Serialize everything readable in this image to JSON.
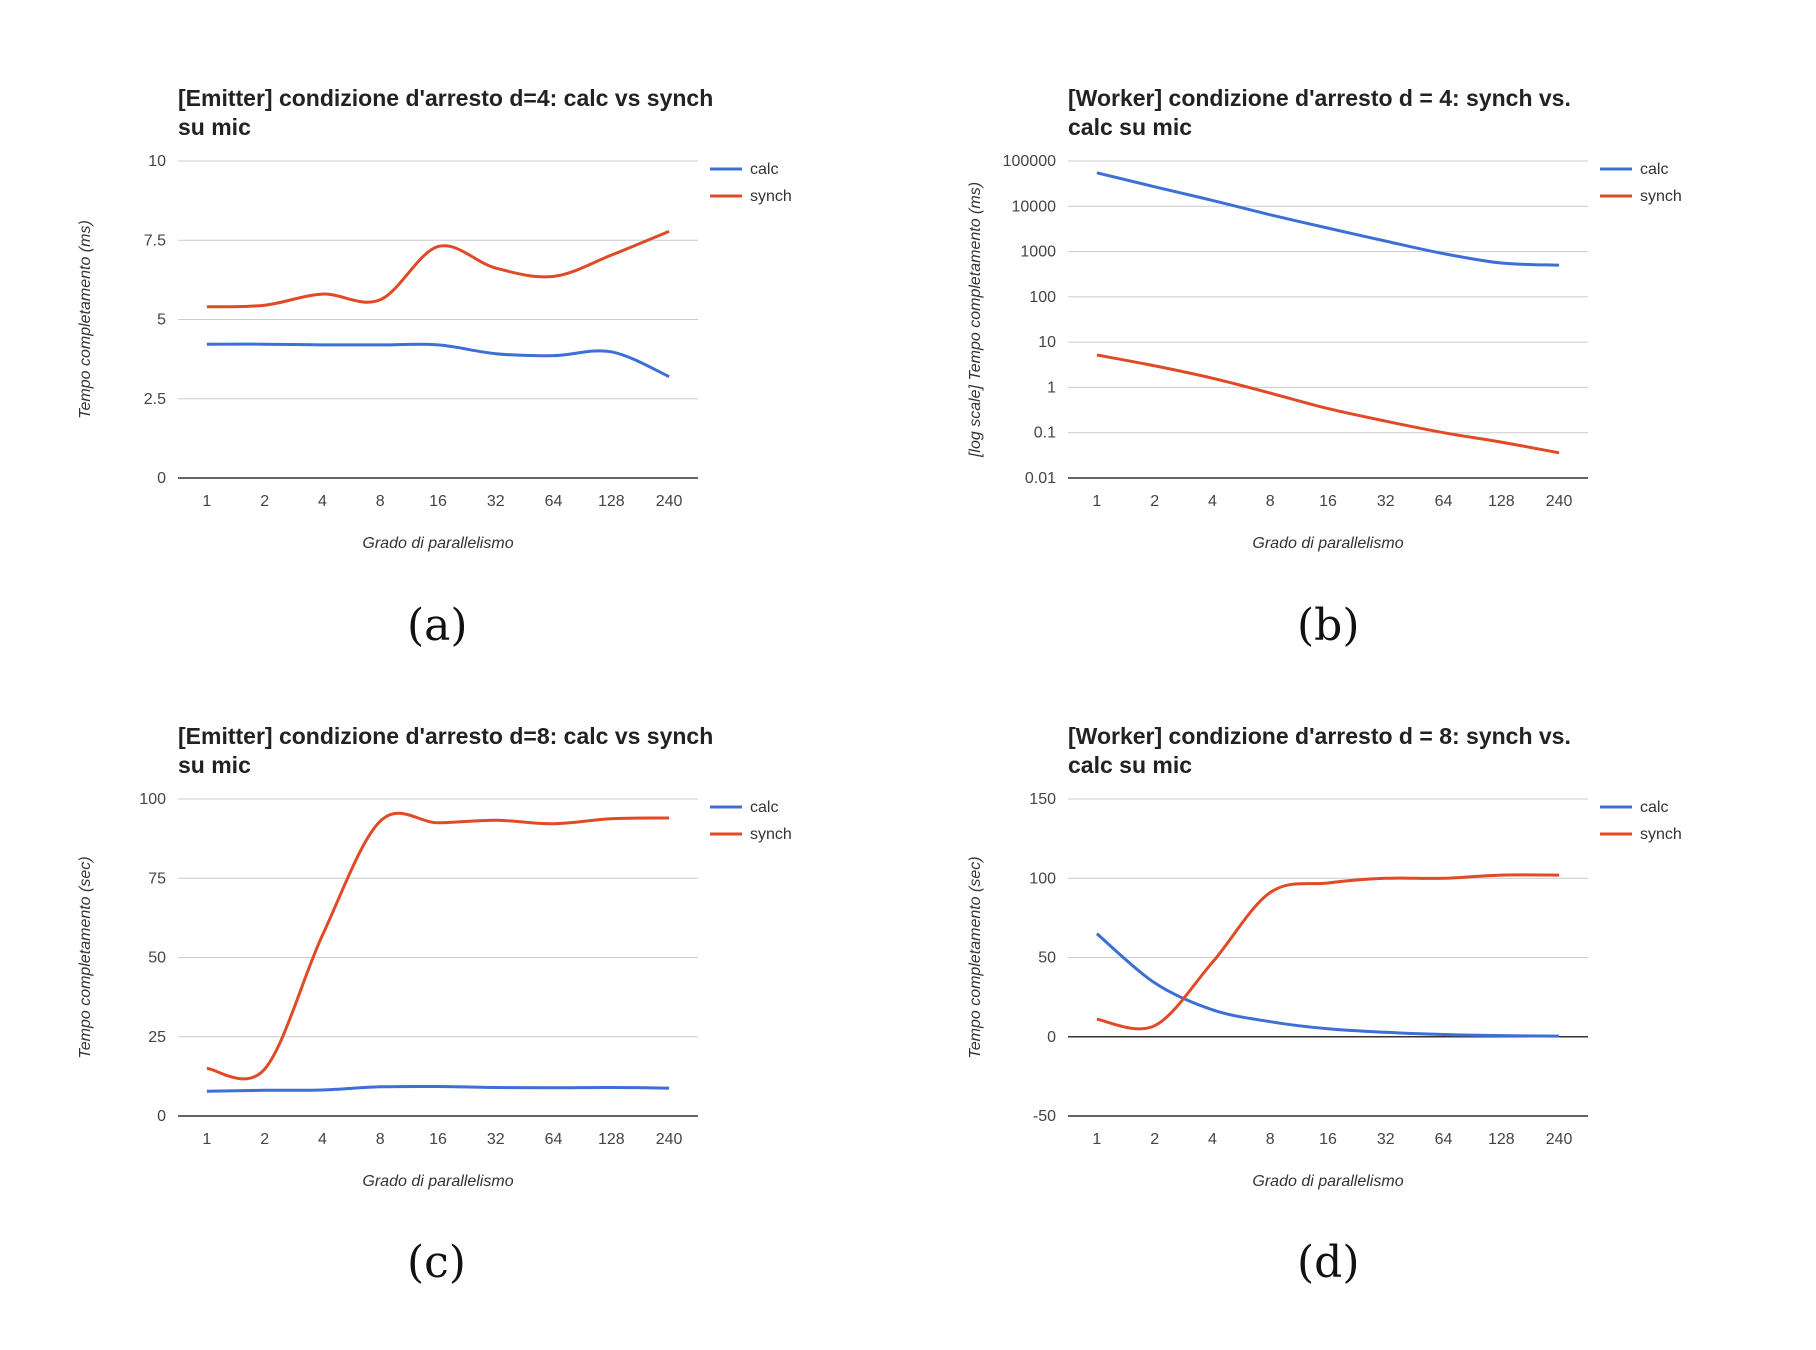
{
  "chart_data": [
    {
      "id": "a",
      "caption": "(a)",
      "type": "line",
      "title_lines": [
        "[Emitter] condizione d'arresto d=4: calc vs synch",
        "su mic"
      ],
      "xlabel": "Grado di parallelismo",
      "ylabel": "Tempo completamento (ms)",
      "categories": [
        "1",
        "2",
        "4",
        "8",
        "16",
        "32",
        "64",
        "128",
        "240"
      ],
      "y_scale": "linear",
      "ylim": [
        0,
        10
      ],
      "yticks": [
        0,
        2.5,
        5,
        7.5,
        10
      ],
      "ytick_labels": [
        "0",
        "2.5",
        "5",
        "7.5",
        "10"
      ],
      "series": [
        {
          "name": "calc",
          "color": "#3d6fd6",
          "values": [
            4.22,
            4.22,
            4.2,
            4.2,
            4.2,
            3.92,
            3.86,
            3.98,
            3.2
          ]
        },
        {
          "name": "synch",
          "color": "#e04a26",
          "values": [
            5.4,
            5.45,
            5.8,
            5.62,
            7.3,
            6.62,
            6.36,
            7.03,
            7.78
          ]
        }
      ],
      "legend_position": "right"
    },
    {
      "id": "b",
      "caption": "(b)",
      "type": "line",
      "title_lines": [
        "[Worker] condizione d'arresto d = 4: synch vs.",
        "calc su mic"
      ],
      "xlabel": "Grado di parallelismo",
      "ylabel": "[log scale] Tempo completamento (ms)",
      "categories": [
        "1",
        "2",
        "4",
        "8",
        "16",
        "32",
        "64",
        "128",
        "240"
      ],
      "y_scale": "log",
      "ylim": [
        0.01,
        100000
      ],
      "yticks": [
        0.01,
        0.1,
        1,
        10,
        100,
        1000,
        10000,
        100000
      ],
      "ytick_labels": [
        "0.01",
        "0.1",
        "1",
        "10",
        "100",
        "1000",
        "10000",
        "100000"
      ],
      "series": [
        {
          "name": "calc",
          "color": "#3d6fd6",
          "values": [
            55000,
            27000,
            13500,
            6500,
            3300,
            1700,
            900,
            560,
            500
          ]
        },
        {
          "name": "synch",
          "color": "#e04a26",
          "values": [
            5.2,
            3.0,
            1.6,
            0.75,
            0.34,
            0.18,
            0.1,
            0.062,
            0.036
          ]
        }
      ],
      "legend_position": "right"
    },
    {
      "id": "c",
      "caption": "(c)",
      "type": "line",
      "title_lines": [
        "[Emitter] condizione d'arresto d=8: calc vs synch",
        "su mic"
      ],
      "xlabel": "Grado di parallelismo",
      "ylabel": "Tempo completamento (sec)",
      "categories": [
        "1",
        "2",
        "4",
        "8",
        "16",
        "32",
        "64",
        "128",
        "240"
      ],
      "y_scale": "linear",
      "ylim": [
        0,
        100
      ],
      "yticks": [
        0,
        25,
        50,
        75,
        100
      ],
      "ytick_labels": [
        "0",
        "25",
        "50",
        "75",
        "100"
      ],
      "series": [
        {
          "name": "calc",
          "color": "#3d6fd6",
          "values": [
            7.8,
            8.1,
            8.2,
            9.2,
            9.3,
            9.0,
            8.9,
            9.0,
            8.8
          ]
        },
        {
          "name": "synch",
          "color": "#e04a26",
          "values": [
            15,
            14.8,
            57,
            93,
            92.5,
            93.3,
            92.2,
            93.8,
            94
          ]
        }
      ],
      "legend_position": "right"
    },
    {
      "id": "d",
      "caption": "(d)",
      "type": "line",
      "title_lines": [
        "[Worker] condizione d'arresto d = 8: synch vs.",
        "calc su mic"
      ],
      "xlabel": "Grado di parallelismo",
      "ylabel": "Tempo completamento (sec)",
      "categories": [
        "1",
        "2",
        "4",
        "8",
        "16",
        "32",
        "64",
        "128",
        "240"
      ],
      "y_scale": "linear",
      "ylim": [
        -50,
        150
      ],
      "yticks": [
        -50,
        0,
        50,
        100,
        150
      ],
      "ytick_labels": [
        "-50",
        "0",
        "50",
        "100",
        "150"
      ],
      "zero_line": true,
      "series": [
        {
          "name": "calc",
          "color": "#3d6fd6",
          "values": [
            65,
            34,
            17,
            9.5,
            5,
            2.8,
            1.4,
            0.7,
            0.4
          ]
        },
        {
          "name": "synch",
          "color": "#e04a26",
          "values": [
            11,
            7,
            47,
            91,
            97,
            100,
            100,
            102,
            102
          ]
        }
      ],
      "legend_position": "right"
    }
  ]
}
